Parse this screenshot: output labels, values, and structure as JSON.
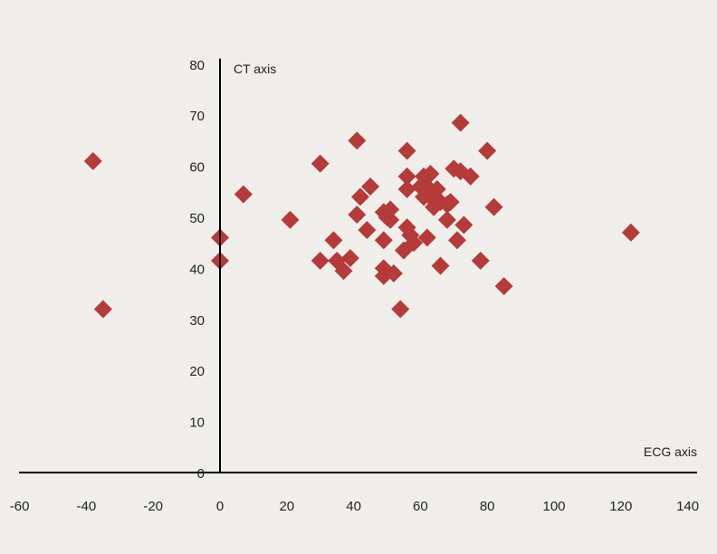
{
  "chart_data": {
    "type": "scatter",
    "title": "",
    "xlabel": "ECG axis",
    "ylabel": "CT axis",
    "xlim": [
      -60,
      140
    ],
    "ylim": [
      0,
      80
    ],
    "x_ticks": [
      -60,
      -40,
      -20,
      0,
      20,
      40,
      60,
      80,
      100,
      120,
      140
    ],
    "y_ticks": [
      0,
      10,
      20,
      30,
      40,
      50,
      60,
      70,
      80
    ],
    "marker": "diamond",
    "grid": false,
    "legend": "none",
    "colors": {
      "marker": "#b53a3a",
      "axis": "#000000",
      "background": "#efeeea"
    },
    "points": [
      {
        "x": -38,
        "y": 61
      },
      {
        "x": -35,
        "y": 32
      },
      {
        "x": 0,
        "y": 46
      },
      {
        "x": 0,
        "y": 41.5
      },
      {
        "x": 7,
        "y": 54.5
      },
      {
        "x": 21,
        "y": 49.5
      },
      {
        "x": 30,
        "y": 60.5
      },
      {
        "x": 30,
        "y": 41.5
      },
      {
        "x": 34,
        "y": 45.5
      },
      {
        "x": 35,
        "y": 41.5
      },
      {
        "x": 37,
        "y": 39.5
      },
      {
        "x": 39,
        "y": 42
      },
      {
        "x": 41,
        "y": 65
      },
      {
        "x": 41,
        "y": 50.5
      },
      {
        "x": 42,
        "y": 54
      },
      {
        "x": 44,
        "y": 47.5
      },
      {
        "x": 45,
        "y": 56
      },
      {
        "x": 49,
        "y": 51
      },
      {
        "x": 49,
        "y": 45.5
      },
      {
        "x": 49,
        "y": 40
      },
      {
        "x": 49,
        "y": 38.5
      },
      {
        "x": 50,
        "y": 50
      },
      {
        "x": 51,
        "y": 51.5
      },
      {
        "x": 51,
        "y": 49.5
      },
      {
        "x": 52,
        "y": 39
      },
      {
        "x": 54,
        "y": 32
      },
      {
        "x": 55,
        "y": 43.5
      },
      {
        "x": 56,
        "y": 63
      },
      {
        "x": 56,
        "y": 58
      },
      {
        "x": 56,
        "y": 55.5
      },
      {
        "x": 56,
        "y": 48
      },
      {
        "x": 57,
        "y": 46.5
      },
      {
        "x": 58,
        "y": 45
      },
      {
        "x": 60,
        "y": 56
      },
      {
        "x": 61,
        "y": 58
      },
      {
        "x": 61,
        "y": 54
      },
      {
        "x": 62,
        "y": 56
      },
      {
        "x": 62,
        "y": 46
      },
      {
        "x": 63,
        "y": 58.5
      },
      {
        "x": 63,
        "y": 54
      },
      {
        "x": 64,
        "y": 52
      },
      {
        "x": 65,
        "y": 55.5
      },
      {
        "x": 66,
        "y": 40.5
      },
      {
        "x": 66,
        "y": 53
      },
      {
        "x": 68,
        "y": 52.5
      },
      {
        "x": 68,
        "y": 49.5
      },
      {
        "x": 69,
        "y": 53
      },
      {
        "x": 70,
        "y": 59.5
      },
      {
        "x": 71,
        "y": 45.5
      },
      {
        "x": 72,
        "y": 68.5
      },
      {
        "x": 72,
        "y": 59
      },
      {
        "x": 73,
        "y": 48.5
      },
      {
        "x": 75,
        "y": 58
      },
      {
        "x": 78,
        "y": 41.5
      },
      {
        "x": 80,
        "y": 63
      },
      {
        "x": 82,
        "y": 52
      },
      {
        "x": 85,
        "y": 36.5
      },
      {
        "x": 123,
        "y": 47
      }
    ]
  }
}
